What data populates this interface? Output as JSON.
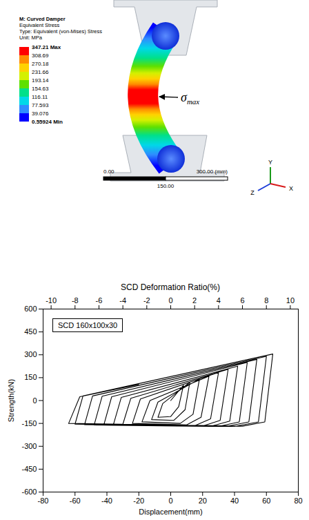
{
  "figure": {
    "legend_title": [
      "M: Curved Damper",
      "Equivalent Stress",
      "Type: Equivalent (von-Mises) Stress",
      "Unit: MPa"
    ],
    "color_scale": {
      "labels": [
        "347.21 Max",
        "308.69",
        "270.18",
        "231.66",
        "193.14",
        "154.63",
        "116.11",
        "77.593",
        "39.076",
        "0.55924 Min"
      ],
      "colors": [
        "#ff0000",
        "#ff8c00",
        "#ffd200",
        "#d4f000",
        "#5ee000",
        "#00e08a",
        "#00d8e8",
        "#2f8cff",
        "#0000ff"
      ]
    },
    "annotation": {
      "symbol": "σ",
      "subscript": "max"
    },
    "scale_bar": {
      "labels": [
        "0.00",
        "150.00",
        "300.00 (mm)"
      ]
    },
    "axes_triad": [
      "Y",
      "Z",
      "X"
    ]
  },
  "chart_data": {
    "type": "line",
    "x_label": "Displacement(mm)",
    "y_label": "Strength(kN)",
    "x2_label": "SCD Deformation Ratio(%)",
    "xlim": [
      -80,
      80
    ],
    "xticks": [
      -80,
      -60,
      -40,
      -20,
      0,
      20,
      40,
      60,
      80
    ],
    "x2lim": [
      -10.67,
      10.67
    ],
    "x2ticks": [
      -10,
      -8,
      -6,
      -4,
      -2,
      0,
      2,
      4,
      6,
      8,
      10
    ],
    "ylim": [
      -600,
      600
    ],
    "yticks": [
      -600,
      -450,
      -300,
      -150,
      0,
      150,
      300,
      450,
      600
    ],
    "grid": false,
    "legend": "top-left",
    "x": [
      0,
      8,
      5,
      0,
      -8,
      -5,
      12,
      9,
      2,
      -12,
      -8,
      18,
      14,
      6,
      -18,
      -13,
      24,
      19,
      10,
      -24,
      -19,
      30,
      25,
      15,
      -30,
      -25,
      36,
      31,
      20,
      -36,
      -31,
      42,
      37,
      25,
      -42,
      -37,
      48,
      43,
      30,
      -48,
      -43,
      54,
      49,
      35,
      -54,
      -49,
      60,
      55,
      40,
      -60,
      -55,
      64,
      59,
      45,
      -64,
      -57,
      -20
    ],
    "series": [
      {
        "name": "SCD 160x100x30",
        "color": "#000000",
        "values": [
          0,
          100,
          -40,
          -105,
          -110,
          -20,
          120,
          -60,
          -130,
          -125,
          -10,
          140,
          -90,
          -150,
          -140,
          0,
          160,
          -110,
          -160,
          -150,
          10,
          185,
          -120,
          -165,
          -155,
          15,
          205,
          -130,
          -168,
          -160,
          20,
          225,
          -135,
          -170,
          -162,
          25,
          250,
          -140,
          -170,
          -160,
          28,
          270,
          -140,
          -170,
          -158,
          30,
          290,
          -140,
          -170,
          -155,
          30,
          305,
          -140,
          -168,
          -150,
          25,
          105
        ]
      }
    ]
  }
}
